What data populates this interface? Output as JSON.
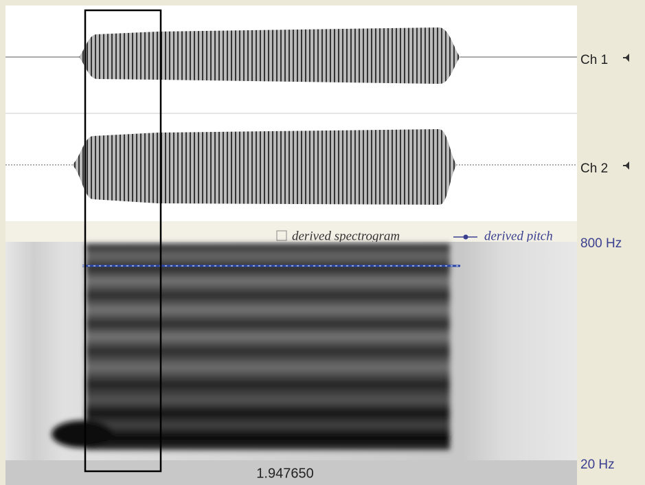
{
  "channels": [
    {
      "label": "Ch 1"
    },
    {
      "label": "Ch 2"
    }
  ],
  "spectrogram": {
    "legend_spectrogram": "derived spectrogram",
    "legend_pitch": "derived pitch",
    "freq_top": "800 Hz",
    "freq_bottom": "20 Hz"
  },
  "time_bar": {
    "label": "1.947650"
  }
}
